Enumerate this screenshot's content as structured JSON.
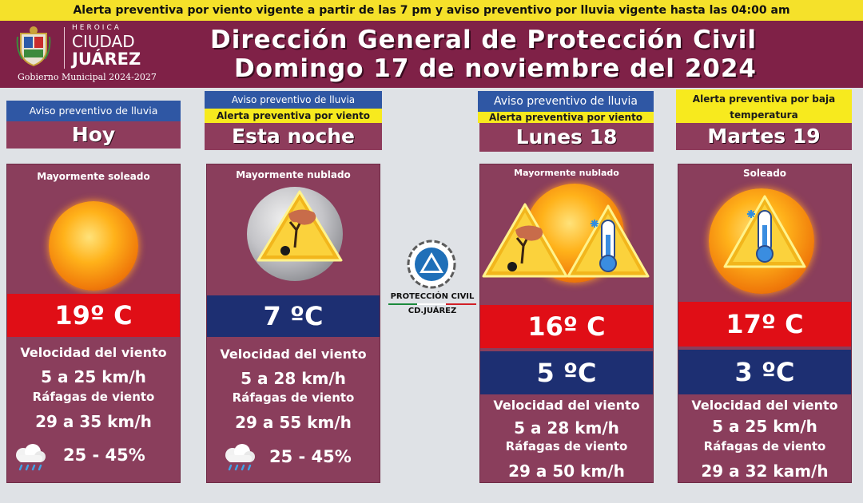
{
  "top_alert": "Alerta preventiva por viento vigente a partir de las 7 pm y aviso preventivo por lluvia vigente hasta las 04:00 am",
  "header": {
    "heroica": "HEROICA",
    "ciudad": "CIUDAD",
    "juarez": "JUÁREZ",
    "gobierno": "Gobierno Municipal 2024-2027",
    "title_line1": "Dirección General de Protección Civil",
    "title_line2": "Domingo 17 de noviembre del 2024"
  },
  "center_logo": {
    "line1": "PROTECCIÓN CIVIL",
    "line2": "CD.JUÁREZ",
    "colors": [
      "#1b8a3c",
      "#ffffff",
      "#d21f26"
    ]
  },
  "days": [
    {
      "notice1": "Aviso preventivo de lluvia",
      "day": "Hoy",
      "condition": "Mayormente soleado",
      "icon": "sun-icon",
      "temp_high": "19º C",
      "wind_label": "Velocidad del viento",
      "wind": "5 a 25 km/h",
      "gust_label": "Ráfagas de viento",
      "gust": "29 a 35 km/h",
      "rain_icon": "rain-cloud-icon",
      "rain": "25 - 45%"
    },
    {
      "notice1": "Aviso preventivo de lluvia",
      "notice2": "Alerta preventiva por viento",
      "day": "Esta noche",
      "condition": "Mayormente nublado",
      "icon": "moon-wind-warning-icon",
      "temp_low": "7 ºC",
      "wind_label": "Velocidad del viento",
      "wind": "5 a 28 km/h",
      "gust_label": "Ráfagas de viento",
      "gust": "29 a 55 km/h",
      "rain_icon": "rain-cloud-icon",
      "rain": "25 - 45%"
    },
    {
      "notice1": "Aviso preventivo de lluvia",
      "notice2": "Alerta preventiva por viento",
      "day": "Lunes 18",
      "condition": "Mayormente nublado",
      "icon": "sun-wind-cold-warning-icon",
      "temp_high": "16º C",
      "temp_low": "5 ºC",
      "wind_label": "Velocidad del viento",
      "wind": "5 a 28 km/h",
      "gust_label": "Ráfagas de viento",
      "gust": "29 a 50 km/h"
    },
    {
      "notice2": "Alerta preventiva por baja temperatura",
      "day": "Martes 19",
      "condition": "Soleado",
      "icon": "sun-cold-warning-icon",
      "temp_high": "17º C",
      "temp_low": "3 ºC",
      "wind_label": "Velocidad del viento",
      "wind": "5 a 25 km/h",
      "gust_label": "Ráfagas de viento",
      "gust": "29 a 32 kam/h"
    }
  ],
  "colors": {
    "maroon": "#7f2147",
    "card": "#8a3e5c",
    "alert_yellow": "#f7ea1e",
    "notice_blue": "#2f57a4",
    "temp_red": "#e00e16",
    "temp_blue": "#1d2f72"
  }
}
